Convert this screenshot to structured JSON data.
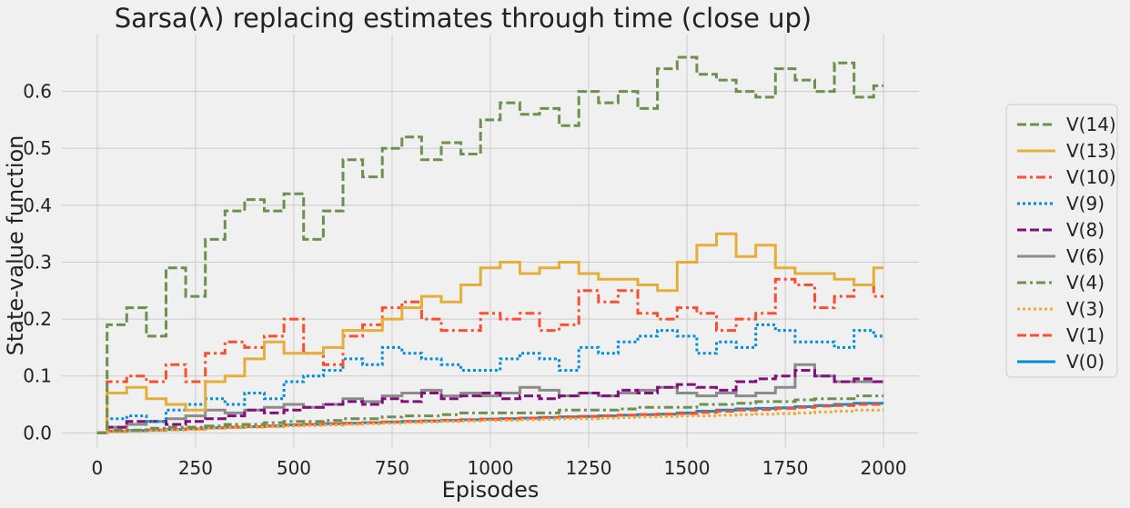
{
  "chart_data": {
    "type": "line",
    "title": "Sarsa(λ) replacing estimates through time (close up)",
    "xlabel": "Episodes",
    "ylabel": "State-value function",
    "xlim": [
      -90,
      2090
    ],
    "ylim": [
      -0.025,
      0.7
    ],
    "xticks": [
      0,
      250,
      500,
      750,
      1000,
      1250,
      1500,
      1750,
      2000
    ],
    "yticks": [
      0.0,
      0.1,
      0.2,
      0.3,
      0.4,
      0.5,
      0.6
    ],
    "ytick_labels": [
      "0.0",
      "0.1",
      "0.2",
      "0.3",
      "0.4",
      "0.5",
      "0.6"
    ],
    "grid": true,
    "legend_position": "right",
    "x": [
      0,
      50,
      100,
      150,
      200,
      250,
      300,
      350,
      400,
      450,
      500,
      550,
      600,
      650,
      700,
      750,
      800,
      850,
      900,
      950,
      1000,
      1050,
      1100,
      1150,
      1200,
      1250,
      1300,
      1350,
      1400,
      1450,
      1500,
      1550,
      1600,
      1650,
      1700,
      1750,
      1800,
      1850,
      1900,
      1950,
      2000
    ],
    "series": [
      {
        "name": "V(14)",
        "color": "#6d904f",
        "dash": "dashed",
        "values": [
          0.0,
          0.19,
          0.22,
          0.17,
          0.29,
          0.24,
          0.34,
          0.39,
          0.41,
          0.39,
          0.42,
          0.34,
          0.39,
          0.48,
          0.45,
          0.5,
          0.52,
          0.48,
          0.51,
          0.49,
          0.55,
          0.58,
          0.56,
          0.57,
          0.54,
          0.6,
          0.58,
          0.6,
          0.57,
          0.64,
          0.66,
          0.63,
          0.62,
          0.6,
          0.59,
          0.64,
          0.62,
          0.6,
          0.65,
          0.59,
          0.61
        ]
      },
      {
        "name": "V(13)",
        "color": "#e5ae38",
        "dash": "solid",
        "values": [
          0.0,
          0.07,
          0.08,
          0.06,
          0.05,
          0.04,
          0.09,
          0.1,
          0.13,
          0.16,
          0.14,
          0.14,
          0.15,
          0.18,
          0.18,
          0.2,
          0.22,
          0.24,
          0.23,
          0.26,
          0.29,
          0.3,
          0.28,
          0.29,
          0.3,
          0.28,
          0.27,
          0.27,
          0.26,
          0.25,
          0.3,
          0.33,
          0.35,
          0.31,
          0.33,
          0.29,
          0.28,
          0.28,
          0.27,
          0.26,
          0.29
        ]
      },
      {
        "name": "V(10)",
        "color": "#fc4f30",
        "dash": "dashdot",
        "values": [
          0.0,
          0.09,
          0.1,
          0.09,
          0.12,
          0.09,
          0.14,
          0.16,
          0.15,
          0.17,
          0.2,
          0.14,
          0.12,
          0.17,
          0.19,
          0.22,
          0.23,
          0.2,
          0.18,
          0.18,
          0.21,
          0.2,
          0.21,
          0.18,
          0.19,
          0.25,
          0.23,
          0.25,
          0.21,
          0.2,
          0.22,
          0.21,
          0.18,
          0.2,
          0.21,
          0.27,
          0.26,
          0.22,
          0.24,
          0.26,
          0.24
        ]
      },
      {
        "name": "V(9)",
        "color": "#008fd5",
        "dash": "dotted",
        "values": [
          0.0,
          0.025,
          0.03,
          0.02,
          0.04,
          0.05,
          0.06,
          0.05,
          0.07,
          0.06,
          0.09,
          0.1,
          0.11,
          0.13,
          0.12,
          0.15,
          0.14,
          0.13,
          0.12,
          0.11,
          0.11,
          0.13,
          0.14,
          0.13,
          0.11,
          0.15,
          0.14,
          0.16,
          0.17,
          0.18,
          0.17,
          0.14,
          0.16,
          0.15,
          0.19,
          0.18,
          0.16,
          0.16,
          0.15,
          0.18,
          0.17
        ]
      },
      {
        "name": "V(8)",
        "color": "#810f7c",
        "dash": "dashed",
        "values": [
          0.0,
          0.01,
          0.02,
          0.02,
          0.015,
          0.02,
          0.025,
          0.03,
          0.04,
          0.035,
          0.04,
          0.045,
          0.05,
          0.055,
          0.05,
          0.06,
          0.055,
          0.07,
          0.06,
          0.065,
          0.07,
          0.06,
          0.065,
          0.06,
          0.065,
          0.07,
          0.065,
          0.075,
          0.07,
          0.08,
          0.085,
          0.08,
          0.075,
          0.09,
          0.095,
          0.1,
          0.11,
          0.1,
          0.09,
          0.095,
          0.09
        ]
      },
      {
        "name": "V(6)",
        "color": "#8b8b8b",
        "dash": "solid",
        "values": [
          0.0,
          0.01,
          0.015,
          0.02,
          0.025,
          0.03,
          0.04,
          0.035,
          0.04,
          0.045,
          0.05,
          0.045,
          0.05,
          0.06,
          0.055,
          0.065,
          0.07,
          0.075,
          0.065,
          0.07,
          0.065,
          0.07,
          0.08,
          0.075,
          0.065,
          0.07,
          0.065,
          0.07,
          0.075,
          0.08,
          0.07,
          0.065,
          0.07,
          0.065,
          0.07,
          0.08,
          0.12,
          0.1,
          0.09,
          0.09,
          0.09
        ]
      },
      {
        "name": "V(4)",
        "color": "#6d904f",
        "dash": "dashdot",
        "values": [
          0.0,
          0.005,
          0.005,
          0.008,
          0.01,
          0.01,
          0.012,
          0.015,
          0.015,
          0.018,
          0.02,
          0.02,
          0.022,
          0.025,
          0.025,
          0.028,
          0.03,
          0.03,
          0.032,
          0.035,
          0.035,
          0.035,
          0.035,
          0.035,
          0.04,
          0.04,
          0.04,
          0.042,
          0.045,
          0.045,
          0.045,
          0.05,
          0.05,
          0.052,
          0.055,
          0.055,
          0.058,
          0.06,
          0.06,
          0.065,
          0.065
        ]
      },
      {
        "name": "V(3)",
        "color": "#e5ae38",
        "dash": "dotted",
        "values": [
          0.0,
          0.002,
          0.003,
          0.004,
          0.005,
          0.006,
          0.008,
          0.009,
          0.01,
          0.011,
          0.012,
          0.013,
          0.014,
          0.015,
          0.016,
          0.017,
          0.018,
          0.019,
          0.02,
          0.021,
          0.022,
          0.022,
          0.023,
          0.024,
          0.025,
          0.025,
          0.026,
          0.027,
          0.028,
          0.029,
          0.03,
          0.03,
          0.031,
          0.032,
          0.033,
          0.034,
          0.035,
          0.037,
          0.038,
          0.04,
          0.04
        ]
      },
      {
        "name": "V(1)",
        "color": "#fc4f30",
        "dash": "dashed",
        "values": [
          0.0,
          0.003,
          0.004,
          0.005,
          0.006,
          0.007,
          0.009,
          0.01,
          0.011,
          0.012,
          0.014,
          0.015,
          0.016,
          0.017,
          0.018,
          0.019,
          0.02,
          0.021,
          0.022,
          0.023,
          0.024,
          0.025,
          0.026,
          0.027,
          0.028,
          0.029,
          0.03,
          0.031,
          0.032,
          0.033,
          0.034,
          0.036,
          0.038,
          0.04,
          0.041,
          0.043,
          0.045,
          0.047,
          0.048,
          0.05,
          0.05
        ]
      },
      {
        "name": "V(0)",
        "color": "#008fd5",
        "dash": "solid",
        "values": [
          0.0,
          0.003,
          0.004,
          0.005,
          0.006,
          0.007,
          0.009,
          0.01,
          0.011,
          0.012,
          0.014,
          0.015,
          0.016,
          0.017,
          0.018,
          0.019,
          0.02,
          0.021,
          0.022,
          0.023,
          0.024,
          0.025,
          0.026,
          0.027,
          0.028,
          0.029,
          0.03,
          0.031,
          0.032,
          0.033,
          0.035,
          0.038,
          0.04,
          0.042,
          0.043,
          0.044,
          0.046,
          0.048,
          0.05,
          0.052,
          0.052
        ]
      }
    ]
  }
}
